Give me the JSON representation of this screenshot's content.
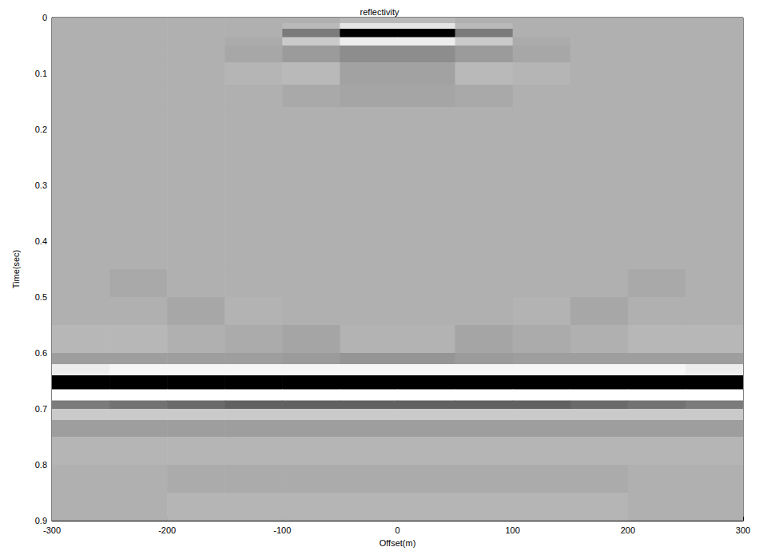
{
  "chart_data": {
    "type": "heatmap",
    "title": "reflectivity",
    "x_label": "Offset(m)",
    "y_label": "Time(sec)",
    "xlim": [
      -300,
      300
    ],
    "xticks": [
      -300,
      -200,
      -100,
      0,
      100,
      200,
      300
    ],
    "ylim": [
      0,
      0.9
    ],
    "yticks": [
      0,
      0.1,
      0.2,
      0.3,
      0.4,
      0.5,
      0.6,
      0.7,
      0.8,
      0.9
    ],
    "x_edges": [
      -300,
      -250,
      -200,
      -150,
      -100,
      -50,
      0,
      50,
      100,
      150,
      200,
      250,
      300
    ],
    "y_edges": [
      0,
      0.01,
      0.02,
      0.035,
      0.05,
      0.08,
      0.12,
      0.16,
      0.45,
      0.5,
      0.55,
      0.6,
      0.62,
      0.64,
      0.665,
      0.685,
      0.7,
      0.72,
      0.75,
      0.8,
      0.85,
      0.9
    ],
    "clim": [
      -1,
      0.45
    ],
    "cells": [
      [
        0,
        0,
        0,
        0,
        0,
        0.05,
        0.05,
        0,
        0,
        0,
        0,
        0
      ],
      [
        0,
        0,
        0,
        0,
        0.05,
        0.3,
        0.3,
        0.05,
        0,
        0,
        0,
        0
      ],
      [
        0,
        0,
        0,
        0,
        -0.3,
        -1,
        -1,
        -0.3,
        0,
        0,
        0,
        0
      ],
      [
        0,
        0,
        0,
        -0.03,
        0.15,
        0.35,
        0.35,
        0.15,
        -0.03,
        0,
        0,
        0
      ],
      [
        0,
        0,
        0,
        -0.05,
        -0.12,
        -0.2,
        -0.2,
        -0.12,
        -0.05,
        0,
        0,
        0
      ],
      [
        0,
        0,
        0,
        0.03,
        0.05,
        -0.08,
        -0.08,
        0.05,
        0.03,
        0,
        0,
        0
      ],
      [
        0,
        0,
        0,
        0,
        -0.04,
        -0.06,
        -0.06,
        -0.04,
        0,
        0,
        0,
        0
      ],
      [
        0,
        0,
        0,
        0,
        0,
        0,
        0,
        0,
        0,
        0,
        0,
        0
      ],
      [
        0,
        -0.04,
        0,
        0,
        0,
        0,
        0,
        0,
        0,
        0,
        -0.04,
        0
      ],
      [
        0,
        0,
        -0.05,
        0.02,
        0,
        0,
        0,
        0,
        0.02,
        -0.05,
        0,
        0
      ],
      [
        0.04,
        0.04,
        0,
        -0.03,
        -0.06,
        0.02,
        0.02,
        -0.06,
        -0.03,
        0,
        0.04,
        0.04
      ],
      [
        -0.1,
        -0.1,
        -0.1,
        -0.1,
        -0.12,
        -0.15,
        -0.15,
        -0.12,
        -0.1,
        -0.1,
        -0.1,
        -0.1
      ],
      [
        0.35,
        0.4,
        0.4,
        0.4,
        0.4,
        0.4,
        0.4,
        0.4,
        0.4,
        0.4,
        0.4,
        0.35
      ],
      [
        -1,
        -1,
        -1,
        -1,
        -1,
        -1,
        -1,
        -1,
        -1,
        -1,
        -1,
        -1
      ],
      [
        0.45,
        0.45,
        0.45,
        0.45,
        0.45,
        0.45,
        0.45,
        0.45,
        0.45,
        0.45,
        0.45,
        0.45
      ],
      [
        -0.3,
        -0.35,
        -0.4,
        -0.45,
        -0.45,
        -0.45,
        -0.45,
        -0.45,
        -0.45,
        -0.4,
        -0.35,
        -0.3
      ],
      [
        0.15,
        0.15,
        0.15,
        0.15,
        0.15,
        0.15,
        0.15,
        0.15,
        0.15,
        0.15,
        0.15,
        0.15
      ],
      [
        -0.1,
        -0.1,
        -0.1,
        -0.1,
        -0.1,
        -0.1,
        -0.1,
        -0.1,
        -0.1,
        -0.1,
        -0.1,
        -0.1
      ],
      [
        0.03,
        0.03,
        0.03,
        0.03,
        0.03,
        0.03,
        0.03,
        0.03,
        0.03,
        0.03,
        0.03,
        0.03
      ],
      [
        0,
        0,
        -0.03,
        -0.03,
        -0.03,
        -0.03,
        -0.03,
        -0.03,
        -0.03,
        -0.03,
        0,
        0
      ],
      [
        0,
        0,
        0.03,
        0.03,
        0.03,
        0.03,
        0.03,
        0.03,
        0.03,
        0.03,
        0,
        0
      ]
    ],
    "grid": false
  }
}
